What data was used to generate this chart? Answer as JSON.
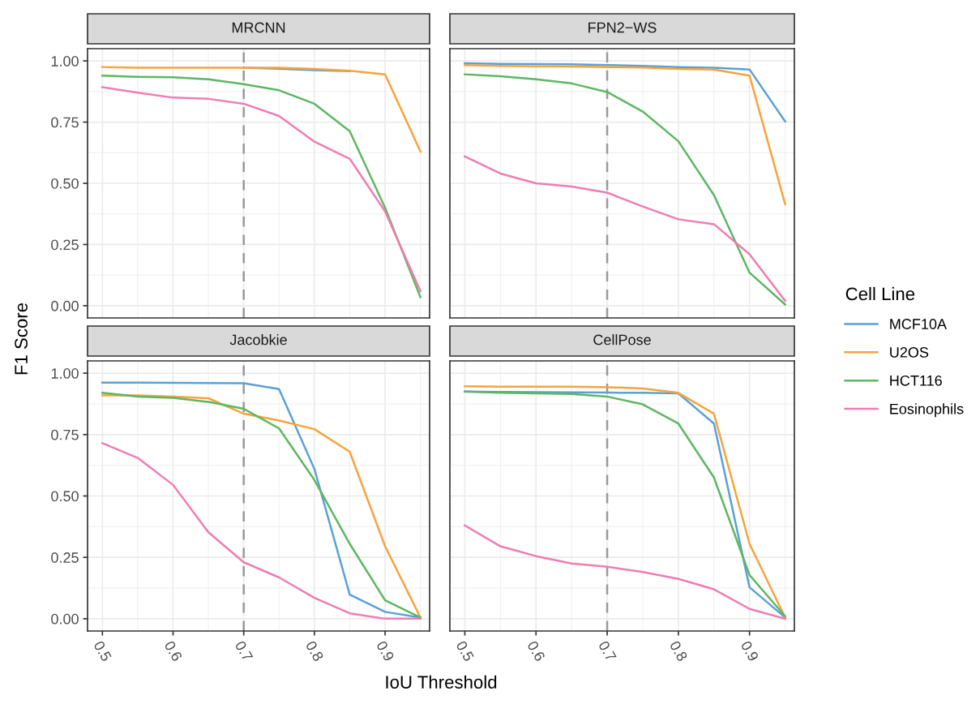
{
  "chart_data": [
    {
      "type": "line",
      "title": "MRCNN",
      "xlabel": "IoU Threshold",
      "ylabel": "F1 Score",
      "legend_title": "Cell Line",
      "legend": "right",
      "grid": true,
      "tick_labels": "y",
      "line_style": "solid",
      "marker": "none",
      "x": [
        0.5,
        0.55,
        0.6,
        0.65,
        0.7,
        0.75,
        0.8,
        0.85,
        0.9,
        0.95
      ],
      "xlim": [
        0.479,
        0.963
      ],
      "xticks": [
        0.5,
        0.6,
        0.7,
        0.8,
        0.9
      ],
      "ylim": [
        -0.05,
        1.05
      ],
      "yticks": [
        {
          "value": 0,
          "label": "0.00"
        },
        {
          "value": 0.25,
          "label": "0.25"
        },
        {
          "value": 0.5,
          "label": "0.50"
        },
        {
          "value": 0.75,
          "label": "0.75"
        },
        {
          "value": 1,
          "label": "1.00"
        }
      ],
      "ref_lines": [
        {
          "axis": "x",
          "value": 0.7,
          "label": null,
          "color": "#999999",
          "line_style": "dashed"
        }
      ],
      "series": [
        {
          "name": "MCF10A",
          "color": "#5aa1d8",
          "values": [
            null,
            null,
            null,
            null,
            0.972,
            0.968,
            0.962,
            0.958,
            null,
            null
          ]
        },
        {
          "name": "U2OS",
          "color": "#f9a33b",
          "values": [
            0.975,
            0.972,
            0.972,
            0.972,
            0.972,
            0.972,
            0.967,
            0.96,
            0.945,
            0.63
          ]
        },
        {
          "name": "HCT116",
          "color": "#5db761",
          "values": [
            0.94,
            0.935,
            0.933,
            0.925,
            0.905,
            0.88,
            0.825,
            0.713,
            0.4,
            0.035
          ]
        },
        {
          "name": "Eosinophils",
          "color": "#ef7db3",
          "values": [
            0.893,
            0.87,
            0.85,
            0.845,
            0.825,
            0.775,
            0.67,
            0.6,
            0.385,
            0.06
          ]
        }
      ]
    },
    {
      "type": "line",
      "title": "FPN2−WS",
      "grid": true,
      "tick_labels": false,
      "line_style": "solid",
      "marker": "none",
      "x": [
        0.5,
        0.55,
        0.6,
        0.65,
        0.7,
        0.75,
        0.8,
        0.85,
        0.9,
        0.95
      ],
      "xlim": [
        0.479,
        0.963
      ],
      "xticks": [
        0.5,
        0.6,
        0.7,
        0.8,
        0.9
      ],
      "ylim": [
        -0.05,
        1.05
      ],
      "yticks": [
        0,
        0.25,
        0.5,
        0.75,
        1
      ],
      "ref_lines": [
        {
          "axis": "x",
          "value": 0.7,
          "label": null,
          "color": "#999999",
          "line_style": "dashed"
        }
      ],
      "series": [
        {
          "color": "#5aa1d8",
          "values": [
            0.99,
            0.988,
            0.987,
            0.986,
            0.983,
            0.98,
            0.975,
            0.972,
            0.965,
            0.753
          ]
        },
        {
          "color": "#f9a33b",
          "values": [
            0.983,
            0.98,
            0.978,
            0.977,
            0.975,
            0.973,
            0.967,
            0.965,
            0.94,
            0.415
          ]
        },
        {
          "color": "#5db761",
          "values": [
            0.945,
            0.937,
            0.925,
            0.908,
            0.873,
            0.793,
            0.672,
            0.452,
            0.135,
            0.005
          ]
        },
        {
          "color": "#ef7db3",
          "values": [
            0.61,
            0.54,
            0.5,
            0.487,
            0.462,
            0.405,
            0.353,
            0.333,
            0.21,
            0.02
          ]
        }
      ]
    },
    {
      "type": "line",
      "title": "Jacobkie",
      "grid": true,
      "line_style": "solid",
      "marker": "none",
      "x": [
        0.5,
        0.55,
        0.6,
        0.65,
        0.7,
        0.75,
        0.8,
        0.85,
        0.9,
        0.95
      ],
      "xlim": [
        0.479,
        0.963
      ],
      "xticks": [
        0.5,
        0.6,
        0.7,
        0.8,
        0.9
      ],
      "ylim": [
        -0.05,
        1.05
      ],
      "yticks": [
        {
          "value": 0,
          "label": "0.00"
        },
        {
          "value": 0.25,
          "label": "0.25"
        },
        {
          "value": 0.5,
          "label": "0.50"
        },
        {
          "value": 0.75,
          "label": "0.75"
        },
        {
          "value": 1,
          "label": "1.00"
        }
      ],
      "ref_lines": [
        {
          "axis": "x",
          "value": 0.7,
          "label": null,
          "color": "#999999",
          "line_style": "dashed"
        }
      ],
      "series": [
        {
          "color": "#5aa1d8",
          "values": [
            0.962,
            0.962,
            0.961,
            0.96,
            0.959,
            0.935,
            0.61,
            0.098,
            0.028,
            0.005
          ]
        },
        {
          "color": "#f9a33b",
          "values": [
            0.91,
            0.91,
            0.905,
            0.898,
            0.835,
            0.807,
            0.772,
            0.68,
            0.295,
            0.005
          ]
        },
        {
          "color": "#5db761",
          "values": [
            0.92,
            0.905,
            0.9,
            0.883,
            0.855,
            0.775,
            0.565,
            0.305,
            0.075,
            0.005
          ]
        },
        {
          "color": "#ef7db3",
          "values": [
            0.715,
            0.655,
            0.545,
            0.352,
            0.23,
            0.168,
            0.085,
            0.022,
            0.0,
            0.0
          ]
        }
      ]
    },
    {
      "type": "line",
      "title": "CellPose",
      "grid": true,
      "tick_labels": "x",
      "line_style": "solid",
      "marker": "none",
      "x": [
        0.5,
        0.55,
        0.6,
        0.65,
        0.7,
        0.75,
        0.8,
        0.85,
        0.9,
        0.95
      ],
      "xlim": [
        0.479,
        0.963
      ],
      "xticks": [
        0.5,
        0.6,
        0.7,
        0.8,
        0.9
      ],
      "ylim": [
        -0.05,
        1.05
      ],
      "yticks": [
        0,
        0.25,
        0.5,
        0.75,
        1
      ],
      "ref_lines": [
        {
          "axis": "x",
          "value": 0.7,
          "label": null,
          "color": "#999999",
          "line_style": "dashed"
        }
      ],
      "series": [
        {
          "color": "#5aa1d8",
          "values": [
            0.925,
            0.924,
            0.923,
            0.922,
            0.921,
            0.92,
            0.918,
            0.795,
            0.128,
            0.005
          ]
        },
        {
          "color": "#f9a33b",
          "values": [
            0.947,
            0.945,
            0.945,
            0.945,
            0.943,
            0.938,
            0.92,
            0.835,
            0.305,
            0.005
          ]
        },
        {
          "color": "#5db761",
          "values": [
            0.925,
            0.92,
            0.918,
            0.915,
            0.905,
            0.873,
            0.795,
            0.575,
            0.178,
            0.01
          ]
        },
        {
          "color": "#ef7db3",
          "values": [
            0.38,
            0.295,
            0.255,
            0.225,
            0.212,
            0.19,
            0.162,
            0.12,
            0.04,
            0.0
          ]
        }
      ]
    }
  ]
}
